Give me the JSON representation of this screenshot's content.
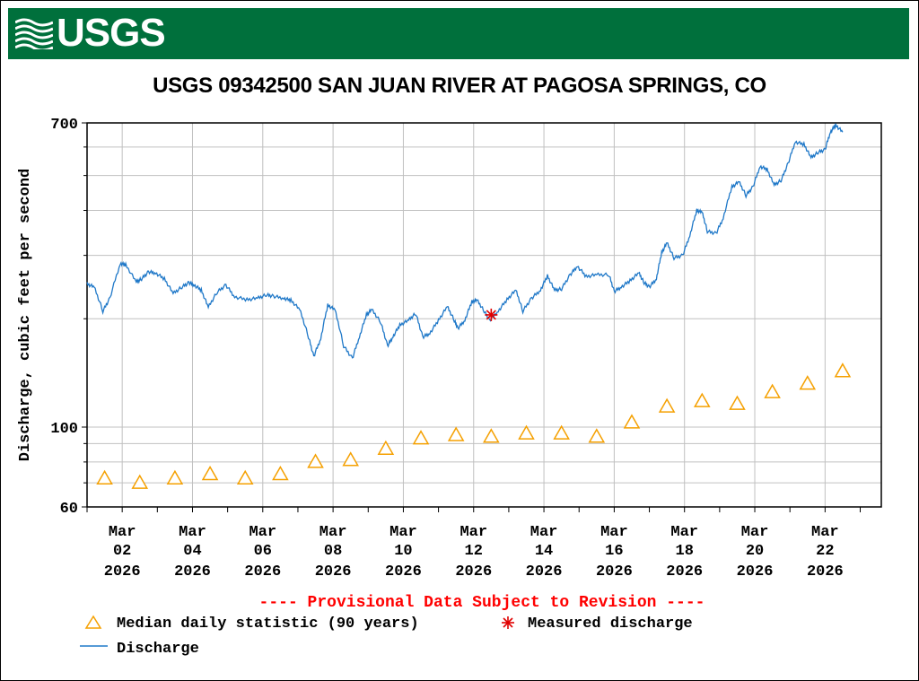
{
  "header": {
    "agency_logo_text": "USGS",
    "title": "USGS 09342500 SAN JUAN RIVER AT PAGOSA SPRINGS, CO"
  },
  "colors": {
    "banner": "#00703c",
    "discharge": "#1f78c8",
    "median": "#f5a000",
    "measured": "#e00000",
    "provisional": "#ff0000",
    "grid": "#c0c0c0"
  },
  "chart_data": {
    "type": "line",
    "title": "USGS 09342500 SAN JUAN RIVER AT PAGOSA SPRINGS, CO",
    "ylabel": "Discharge, cubic feet per second",
    "xlabel": "",
    "yscale": "log",
    "ylim": [
      60,
      700
    ],
    "xlim_days": [
      0,
      22.6
    ],
    "y_ticks": [
      {
        "value": 60,
        "label": "60"
      },
      {
        "value": 100,
        "label": "100"
      },
      {
        "value": 700,
        "label": "700"
      }
    ],
    "y_minor_ticks": [
      70,
      80,
      90,
      200,
      300,
      400,
      500,
      600
    ],
    "x_ticks": [
      {
        "day": 1,
        "month": "Mar",
        "date": "02",
        "year": "2026"
      },
      {
        "day": 3,
        "month": "Mar",
        "date": "04",
        "year": "2026"
      },
      {
        "day": 5,
        "month": "Mar",
        "date": "06",
        "year": "2026"
      },
      {
        "day": 7,
        "month": "Mar",
        "date": "08",
        "year": "2026"
      },
      {
        "day": 9,
        "month": "Mar",
        "date": "10",
        "year": "2026"
      },
      {
        "day": 11,
        "month": "Mar",
        "date": "12",
        "year": "2026"
      },
      {
        "day": 13,
        "month": "Mar",
        "date": "14",
        "year": "2026"
      },
      {
        "day": 15,
        "month": "Mar",
        "date": "16",
        "year": "2026"
      },
      {
        "day": 17,
        "month": "Mar",
        "date": "18",
        "year": "2026"
      },
      {
        "day": 19,
        "month": "Mar",
        "date": "20",
        "year": "2026"
      },
      {
        "day": 21,
        "month": "Mar",
        "date": "22",
        "year": "2026"
      }
    ],
    "series": [
      {
        "name": "Discharge",
        "kind": "line",
        "points": [
          [
            0.0,
            250
          ],
          [
            0.2,
            245
          ],
          [
            0.45,
            210
          ],
          [
            0.65,
            228
          ],
          [
            0.95,
            285
          ],
          [
            1.1,
            282
          ],
          [
            1.4,
            253
          ],
          [
            1.55,
            258
          ],
          [
            1.75,
            270
          ],
          [
            1.95,
            268
          ],
          [
            2.2,
            258
          ],
          [
            2.45,
            235
          ],
          [
            2.7,
            245
          ],
          [
            2.9,
            252
          ],
          [
            3.05,
            248
          ],
          [
            3.25,
            240
          ],
          [
            3.45,
            215
          ],
          [
            3.7,
            237
          ],
          [
            3.95,
            248
          ],
          [
            4.2,
            230
          ],
          [
            4.55,
            226
          ],
          [
            4.85,
            228
          ],
          [
            5.1,
            233
          ],
          [
            5.3,
            231
          ],
          [
            5.6,
            228
          ],
          [
            5.8,
            225
          ],
          [
            6.05,
            212
          ],
          [
            6.3,
            178
          ],
          [
            6.45,
            157
          ],
          [
            6.65,
            176
          ],
          [
            6.85,
            218
          ],
          [
            7.05,
            212
          ],
          [
            7.3,
            168
          ],
          [
            7.55,
            155
          ],
          [
            7.75,
            178
          ],
          [
            7.95,
            205
          ],
          [
            8.1,
            212
          ],
          [
            8.35,
            196
          ],
          [
            8.55,
            168
          ],
          [
            8.7,
            178
          ],
          [
            8.9,
            192
          ],
          [
            9.15,
            198
          ],
          [
            9.35,
            207
          ],
          [
            9.55,
            178
          ],
          [
            9.75,
            182
          ],
          [
            10.0,
            198
          ],
          [
            10.25,
            216
          ],
          [
            10.45,
            198
          ],
          [
            10.55,
            188
          ],
          [
            10.75,
            198
          ],
          [
            10.95,
            223
          ],
          [
            11.1,
            225
          ],
          [
            11.3,
            210
          ],
          [
            11.45,
            198
          ],
          [
            11.7,
            210
          ],
          [
            11.95,
            226
          ],
          [
            12.2,
            240
          ],
          [
            12.4,
            210
          ],
          [
            12.65,
            228
          ],
          [
            12.9,
            240
          ],
          [
            13.1,
            263
          ],
          [
            13.3,
            240
          ],
          [
            13.5,
            242
          ],
          [
            13.75,
            265
          ],
          [
            13.95,
            280
          ],
          [
            14.2,
            262
          ],
          [
            14.5,
            265
          ],
          [
            14.85,
            265
          ],
          [
            15.0,
            238
          ],
          [
            15.2,
            245
          ],
          [
            15.45,
            255
          ],
          [
            15.7,
            268
          ],
          [
            15.85,
            252
          ],
          [
            16.0,
            245
          ],
          [
            16.2,
            258
          ],
          [
            16.35,
            305
          ],
          [
            16.5,
            325
          ],
          [
            16.7,
            295
          ],
          [
            16.95,
            300
          ],
          [
            17.15,
            340
          ],
          [
            17.35,
            400
          ],
          [
            17.5,
            395
          ],
          [
            17.65,
            350
          ],
          [
            17.9,
            345
          ],
          [
            18.1,
            380
          ],
          [
            18.35,
            465
          ],
          [
            18.55,
            480
          ],
          [
            18.75,
            440
          ],
          [
            18.95,
            465
          ],
          [
            19.15,
            530
          ],
          [
            19.35,
            520
          ],
          [
            19.55,
            470
          ],
          [
            19.75,
            485
          ],
          [
            19.95,
            540
          ],
          [
            20.15,
            620
          ],
          [
            20.4,
            610
          ],
          [
            20.6,
            560
          ],
          [
            20.8,
            580
          ],
          [
            21.0,
            590
          ],
          [
            21.15,
            660
          ],
          [
            21.3,
            690
          ],
          [
            21.5,
            660
          ]
        ]
      },
      {
        "name": "Median daily statistic (90 years)",
        "kind": "marker",
        "points": [
          [
            0.5,
            72
          ],
          [
            1.5,
            70
          ],
          [
            2.5,
            72
          ],
          [
            3.5,
            74
          ],
          [
            4.5,
            72
          ],
          [
            5.5,
            74
          ],
          [
            6.5,
            80
          ],
          [
            7.5,
            81
          ],
          [
            8.5,
            87
          ],
          [
            9.5,
            93
          ],
          [
            10.5,
            95
          ],
          [
            11.5,
            94
          ],
          [
            12.5,
            96
          ],
          [
            13.5,
            96
          ],
          [
            14.5,
            94
          ],
          [
            15.5,
            103
          ],
          [
            16.5,
            114
          ],
          [
            17.5,
            118
          ],
          [
            18.5,
            116
          ],
          [
            19.5,
            125
          ],
          [
            20.5,
            132
          ],
          [
            21.5,
            143
          ]
        ]
      },
      {
        "name": "Measured discharge",
        "kind": "marker",
        "points": [
          [
            11.5,
            205
          ]
        ]
      }
    ],
    "annotation": "---- Provisional Data Subject to Revision ----",
    "legend": {
      "position": "bottom-left",
      "entries": [
        {
          "label": "Median daily statistic (90 years)",
          "symbol": "triangle"
        },
        {
          "label": "Measured discharge",
          "symbol": "asterisk"
        },
        {
          "label": "Discharge",
          "symbol": "line"
        }
      ]
    }
  }
}
